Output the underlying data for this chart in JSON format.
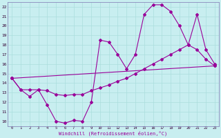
{
  "xlabel": "Windchill (Refroidissement éolien,°C)",
  "bg_color": "#c8eef0",
  "line_color": "#990099",
  "grid_color": "#aadddd",
  "axis_color": "#8888bb",
  "xlim": [
    -0.5,
    23.5
  ],
  "ylim": [
    9.5,
    22.5
  ],
  "xticks": [
    0,
    1,
    2,
    3,
    4,
    5,
    6,
    7,
    8,
    9,
    10,
    11,
    12,
    13,
    14,
    15,
    16,
    17,
    18,
    19,
    20,
    21,
    22,
    23
  ],
  "yticks": [
    10,
    11,
    12,
    13,
    14,
    15,
    16,
    17,
    18,
    19,
    20,
    21,
    22
  ],
  "series1_x": [
    0,
    1,
    2,
    3,
    4,
    5,
    6,
    7,
    8,
    9,
    10,
    11,
    12,
    13,
    14,
    15,
    16,
    17,
    18,
    19,
    20,
    21,
    22,
    23
  ],
  "series1_y": [
    14.5,
    13.3,
    12.6,
    13.3,
    11.7,
    10.0,
    9.8,
    10.1,
    10.0,
    12.0,
    18.5,
    18.3,
    17.0,
    15.5,
    17.0,
    21.2,
    22.2,
    22.2,
    21.5,
    20.0,
    18.0,
    17.5,
    16.5,
    15.8
  ],
  "series2_x": [
    0,
    1,
    2,
    3,
    4,
    5,
    6,
    7,
    8,
    9,
    10,
    11,
    12,
    13,
    14,
    15,
    16,
    17,
    18,
    19,
    20,
    21,
    22,
    23
  ],
  "series2_y": [
    14.5,
    13.3,
    13.3,
    13.3,
    13.2,
    12.8,
    12.7,
    12.8,
    12.8,
    13.2,
    13.5,
    13.8,
    14.2,
    14.5,
    15.0,
    15.5,
    16.0,
    16.5,
    17.0,
    17.5,
    18.0,
    21.2,
    17.5,
    16.0
  ],
  "series3_x": [
    0,
    23
  ],
  "series3_y": [
    14.5,
    15.8
  ]
}
